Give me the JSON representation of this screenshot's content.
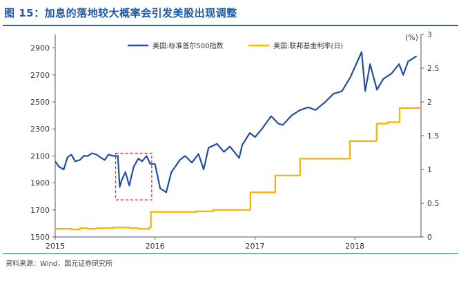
{
  "figure": {
    "title": "图 15：加息的落地较大概率会引发美股出现调整",
    "source": "资料来源：Wind，国元证券研究所"
  },
  "chart_data": {
    "type": "line",
    "title": "",
    "x_axis": {
      "type": "date",
      "range": [
        "2015-01-01",
        "2018-08-31"
      ],
      "ticks": [
        "2015",
        "2016",
        "2017",
        "2018"
      ]
    },
    "y_left": {
      "range": [
        1500,
        3000
      ],
      "ticks": [
        1500,
        1700,
        1900,
        2100,
        2300,
        2500,
        2700,
        2900
      ]
    },
    "y_right": {
      "label": "(%)",
      "range": [
        0,
        3
      ],
      "ticks": [
        0,
        0.5,
        1,
        1.5,
        2,
        2.5,
        3
      ]
    },
    "legend_position": "top-center",
    "grid": false,
    "series": [
      {
        "name": "美国:标准普尔500指数",
        "axis": "left",
        "color": "#1f4e9c",
        "points": [
          [
            "2015-01-01",
            2060
          ],
          [
            "2015-01-15",
            2020
          ],
          [
            "2015-02-01",
            2000
          ],
          [
            "2015-02-15",
            2090
          ],
          [
            "2015-03-01",
            2110
          ],
          [
            "2015-03-15",
            2060
          ],
          [
            "2015-04-01",
            2070
          ],
          [
            "2015-04-15",
            2100
          ],
          [
            "2015-05-01",
            2100
          ],
          [
            "2015-05-15",
            2120
          ],
          [
            "2015-06-01",
            2110
          ],
          [
            "2015-06-15",
            2090
          ],
          [
            "2015-07-01",
            2070
          ],
          [
            "2015-07-15",
            2110
          ],
          [
            "2015-08-01",
            2100
          ],
          [
            "2015-08-18",
            2100
          ],
          [
            "2015-08-25",
            1870
          ],
          [
            "2015-09-01",
            1920
          ],
          [
            "2015-09-15",
            1980
          ],
          [
            "2015-09-29",
            1880
          ],
          [
            "2015-10-15",
            2020
          ],
          [
            "2015-11-01",
            2080
          ],
          [
            "2015-11-15",
            2060
          ],
          [
            "2015-12-01",
            2100
          ],
          [
            "2015-12-15",
            2040
          ],
          [
            "2016-01-01",
            2040
          ],
          [
            "2016-01-20",
            1860
          ],
          [
            "2016-02-11",
            1830
          ],
          [
            "2016-03-01",
            1980
          ],
          [
            "2016-03-15",
            2020
          ],
          [
            "2016-04-01",
            2070
          ],
          [
            "2016-04-20",
            2100
          ],
          [
            "2016-05-15",
            2050
          ],
          [
            "2016-06-08",
            2115
          ],
          [
            "2016-06-27",
            2000
          ],
          [
            "2016-07-15",
            2160
          ],
          [
            "2016-08-15",
            2190
          ],
          [
            "2016-09-09",
            2130
          ],
          [
            "2016-10-01",
            2170
          ],
          [
            "2016-11-04",
            2085
          ],
          [
            "2016-11-15",
            2180
          ],
          [
            "2016-12-13",
            2270
          ],
          [
            "2017-01-01",
            2240
          ],
          [
            "2017-01-26",
            2300
          ],
          [
            "2017-03-01",
            2395
          ],
          [
            "2017-03-27",
            2340
          ],
          [
            "2017-04-13",
            2330
          ],
          [
            "2017-05-15",
            2400
          ],
          [
            "2017-06-15",
            2440
          ],
          [
            "2017-07-15",
            2460
          ],
          [
            "2017-08-10",
            2440
          ],
          [
            "2017-09-15",
            2500
          ],
          [
            "2017-10-15",
            2560
          ],
          [
            "2017-11-15",
            2580
          ],
          [
            "2017-12-15",
            2680
          ],
          [
            "2018-01-26",
            2870
          ],
          [
            "2018-02-08",
            2580
          ],
          [
            "2018-02-26",
            2780
          ],
          [
            "2018-03-23",
            2590
          ],
          [
            "2018-04-15",
            2670
          ],
          [
            "2018-05-15",
            2710
          ],
          [
            "2018-06-12",
            2780
          ],
          [
            "2018-06-27",
            2700
          ],
          [
            "2018-07-15",
            2800
          ],
          [
            "2018-08-15",
            2840
          ]
        ]
      },
      {
        "name": "美国:联邦基金利率(日)",
        "axis": "right",
        "color": "#f6b800",
        "points": [
          [
            "2015-01-01",
            0.12
          ],
          [
            "2015-02-01",
            0.12
          ],
          [
            "2015-03-01",
            0.11
          ],
          [
            "2015-04-01",
            0.13
          ],
          [
            "2015-05-01",
            0.12
          ],
          [
            "2015-06-01",
            0.13
          ],
          [
            "2015-07-01",
            0.13
          ],
          [
            "2015-08-01",
            0.14
          ],
          [
            "2015-09-01",
            0.14
          ],
          [
            "2015-10-01",
            0.13
          ],
          [
            "2015-11-01",
            0.12
          ],
          [
            "2015-12-10",
            0.14
          ],
          [
            "2015-12-17",
            0.37
          ],
          [
            "2016-02-01",
            0.37
          ],
          [
            "2016-04-01",
            0.37
          ],
          [
            "2016-06-01",
            0.38
          ],
          [
            "2016-08-01",
            0.4
          ],
          [
            "2016-10-01",
            0.4
          ],
          [
            "2016-12-14",
            0.41
          ],
          [
            "2016-12-15",
            0.66
          ],
          [
            "2017-02-01",
            0.66
          ],
          [
            "2017-03-15",
            0.66
          ],
          [
            "2017-03-16",
            0.91
          ],
          [
            "2017-05-01",
            0.91
          ],
          [
            "2017-06-14",
            0.91
          ],
          [
            "2017-06-15",
            1.16
          ],
          [
            "2017-08-01",
            1.16
          ],
          [
            "2017-10-01",
            1.16
          ],
          [
            "2017-12-13",
            1.16
          ],
          [
            "2017-12-14",
            1.42
          ],
          [
            "2018-01-15",
            1.42
          ],
          [
            "2018-03-21",
            1.44
          ],
          [
            "2018-03-22",
            1.68
          ],
          [
            "2018-05-01",
            1.7
          ],
          [
            "2018-06-13",
            1.7
          ],
          [
            "2018-06-14",
            1.91
          ],
          [
            "2018-07-15",
            1.91
          ],
          [
            "2018-08-31",
            1.91
          ]
        ]
      }
    ],
    "annotations": [
      {
        "type": "dashed-rectangle",
        "color": "#e02020",
        "x_range": [
          "2015-08-10",
          "2015-12-20"
        ],
        "y_range": [
          1775,
          2120
        ],
        "y_axis": "left"
      }
    ]
  }
}
